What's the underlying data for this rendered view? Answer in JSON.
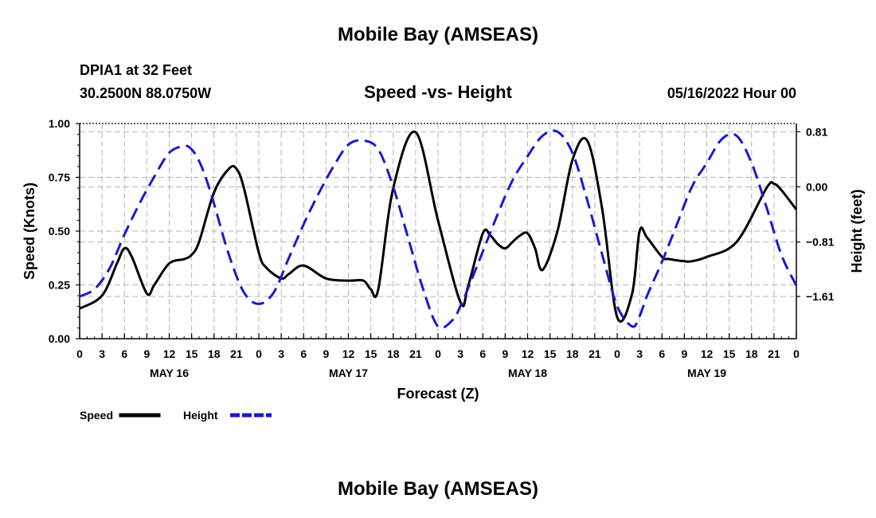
{
  "header": {
    "title": "Mobile Bay (AMSEAS)",
    "station": "DPIA1 at 32 Feet",
    "coords": "30.2500N  88.0750W",
    "subtitle": "Speed -vs- Height",
    "datetime": "05/16/2022 Hour 00",
    "bottom_title": "Mobile Bay (AMSEAS)"
  },
  "chart_data": {
    "type": "line",
    "title": "Speed -vs- Height",
    "xlabel": "Forecast (Z)",
    "ylabel": "Speed (Knots)",
    "y2label": "Height (feet)",
    "xlim": [
      0,
      96
    ],
    "ylim": [
      0,
      1
    ],
    "y2lim": [
      -2.23,
      0.93
    ],
    "xticks": [
      0,
      3,
      6,
      9,
      12,
      15,
      18,
      21,
      24,
      27,
      30,
      33,
      36,
      39,
      42,
      45,
      48,
      51,
      54,
      57,
      60,
      63,
      66,
      69,
      72,
      75,
      78,
      81,
      84,
      87,
      90,
      93,
      96
    ],
    "xtick_labels": [
      "0",
      "3",
      "6",
      "9",
      "12",
      "15",
      "18",
      "21",
      "0",
      "3",
      "6",
      "9",
      "12",
      "15",
      "18",
      "21",
      "0",
      "3",
      "6",
      "9",
      "12",
      "15",
      "18",
      "21",
      "0",
      "3",
      "6",
      "9",
      "12",
      "15",
      "18",
      "21",
      "0"
    ],
    "day_labels": [
      {
        "label": "MAY 16",
        "x": 12
      },
      {
        "label": "MAY 17",
        "x": 36
      },
      {
        "label": "MAY 18",
        "x": 60
      },
      {
        "label": "MAY 19",
        "x": 84
      }
    ],
    "yticks": [
      0,
      0.25,
      0.5,
      0.75,
      1.0
    ],
    "ytick_labels": [
      "0.00",
      "0.25",
      "0.50",
      "0.75",
      "1.00"
    ],
    "y2ticks": [
      -1.61,
      -0.81,
      0.0,
      0.81
    ],
    "y2tick_labels": [
      "−1.61",
      "−0.81",
      "0.00",
      "0.81"
    ],
    "grid": true,
    "legend": [
      {
        "name": "Speed",
        "color": "#000000",
        "dash": "solid"
      },
      {
        "name": "Height",
        "color": "#1a1acc",
        "dash": "dashed"
      }
    ],
    "series": [
      {
        "name": "Speed",
        "axis": "left",
        "color": "#000000",
        "x": [
          0,
          3,
          5,
          6,
          7,
          9,
          10,
          12,
          14,
          15,
          16,
          18,
          20,
          21,
          22,
          24,
          25,
          27,
          28,
          30,
          33,
          36,
          38,
          39,
          40,
          42,
          45,
          48,
          51,
          52,
          54,
          55,
          56,
          57,
          58,
          59,
          60,
          61,
          62,
          64,
          66,
          68,
          70,
          72,
          74,
          75,
          76,
          78,
          79,
          81,
          82,
          84,
          88,
          92,
          93,
          94,
          96
        ],
        "values": [
          0.14,
          0.2,
          0.35,
          0.42,
          0.38,
          0.21,
          0.25,
          0.35,
          0.37,
          0.39,
          0.45,
          0.68,
          0.79,
          0.79,
          0.7,
          0.4,
          0.33,
          0.28,
          0.3,
          0.34,
          0.28,
          0.27,
          0.27,
          0.23,
          0.23,
          0.7,
          0.96,
          0.55,
          0.17,
          0.24,
          0.49,
          0.48,
          0.44,
          0.42,
          0.45,
          0.48,
          0.49,
          0.42,
          0.32,
          0.5,
          0.83,
          0.92,
          0.6,
          0.1,
          0.21,
          0.5,
          0.47,
          0.38,
          0.37,
          0.36,
          0.36,
          0.38,
          0.45,
          0.7,
          0.72,
          0.69,
          0.6
        ]
      },
      {
        "name": "Height",
        "axis": "right",
        "color": "#1a1acc",
        "x": [
          0,
          2,
          4,
          6,
          8,
          10,
          12,
          14,
          15,
          16,
          17,
          18,
          20,
          22,
          24,
          26,
          28,
          30,
          32,
          34,
          36,
          38,
          40,
          42,
          44,
          46,
          48,
          50,
          51,
          52,
          54,
          56,
          58,
          60,
          62,
          64,
          66,
          68,
          70,
          72,
          74,
          75,
          76,
          78,
          80,
          82,
          84,
          86,
          88,
          90,
          92,
          94,
          96
        ],
        "values": [
          -1.61,
          -1.5,
          -1.2,
          -0.7,
          -0.25,
          0.15,
          0.5,
          0.6,
          0.55,
          0.38,
          0.1,
          -0.25,
          -1.0,
          -1.55,
          -1.72,
          -1.55,
          -1.05,
          -0.55,
          -0.1,
          0.3,
          0.62,
          0.68,
          0.55,
          0.0,
          -0.75,
          -1.5,
          -2.05,
          -1.95,
          -1.75,
          -1.5,
          -0.95,
          -0.4,
          0.1,
          0.45,
          0.75,
          0.81,
          0.5,
          -0.2,
          -1.0,
          -1.75,
          -2.05,
          -1.9,
          -1.6,
          -1.1,
          -0.55,
          0.0,
          0.35,
          0.7,
          0.75,
          0.35,
          -0.3,
          -1.0,
          -1.45
        ]
      }
    ]
  }
}
